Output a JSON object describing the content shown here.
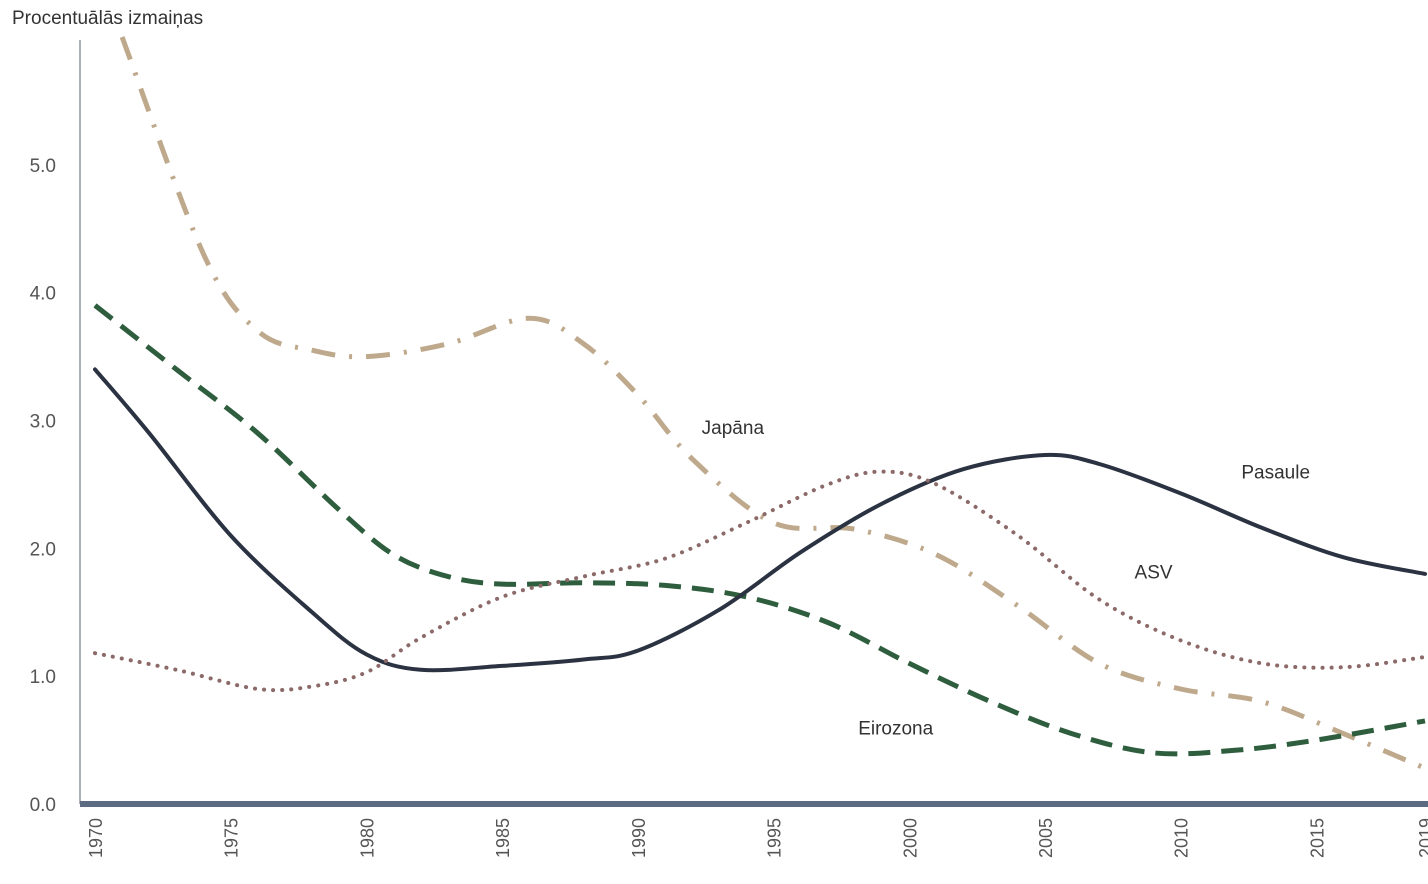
{
  "chart_data": {
    "type": "line",
    "title": "",
    "xlabel": "",
    "ylabel": "Procentuālās izmaiņas",
    "xlim": [
      1970,
      2019
    ],
    "ylim": [
      0,
      6
    ],
    "yticks": [
      "0.0",
      "1.0",
      "2.0",
      "3.0",
      "4.0",
      "5.0"
    ],
    "xticks": [
      "1970",
      "1975",
      "1980",
      "1985",
      "1990",
      "1995",
      "2000",
      "2005",
      "2010",
      "2015",
      "2019"
    ],
    "grid": false,
    "legend": "inline labels",
    "series": [
      {
        "name": "Japāna",
        "color": "#bfa98c",
        "dash": "dash-dot",
        "x": [
          1971,
          1974,
          1976,
          1978,
          1980,
          1983,
          1986,
          1988,
          1990,
          1992,
          1995,
          1998,
          2001,
          2004,
          2007,
          2010,
          2013,
          2016,
          2019
        ],
        "y": [
          6.0,
          4.3,
          3.7,
          3.55,
          3.5,
          3.6,
          3.8,
          3.6,
          3.2,
          2.7,
          2.2,
          2.15,
          1.95,
          1.55,
          1.1,
          0.9,
          0.8,
          0.55,
          0.28
        ]
      },
      {
        "name": "Eirozona",
        "color": "#2e5e3e",
        "dash": "dashed",
        "x": [
          1970,
          1973,
          1976,
          1979,
          1981,
          1983,
          1985,
          1988,
          1991,
          1994,
          1997,
          2000,
          2003,
          2006,
          2009,
          2012,
          2015,
          2019
        ],
        "y": [
          3.9,
          3.4,
          2.9,
          2.3,
          1.95,
          1.78,
          1.72,
          1.73,
          1.71,
          1.62,
          1.42,
          1.1,
          0.8,
          0.55,
          0.4,
          0.42,
          0.5,
          0.65
        ]
      },
      {
        "name": "Pasaule",
        "color": "#2b3342",
        "dash": "solid",
        "x": [
          1970,
          1972,
          1975,
          1978,
          1980,
          1982,
          1985,
          1988,
          1990,
          1993,
          1996,
          1999,
          2002,
          2005,
          2007,
          2010,
          2013,
          2016,
          2019
        ],
        "y": [
          3.4,
          2.9,
          2.1,
          1.5,
          1.17,
          1.05,
          1.08,
          1.13,
          1.2,
          1.52,
          1.97,
          2.35,
          2.62,
          2.73,
          2.66,
          2.43,
          2.16,
          1.93,
          1.8
        ]
      },
      {
        "name": "ASV",
        "color": "#8c6a6a",
        "dash": "dotted",
        "x": [
          1970,
          1973,
          1976,
          1978,
          1980,
          1982,
          1985,
          1988,
          1991,
          1994,
          1997,
          1999,
          2001,
          2004,
          2007,
          2010,
          2013,
          2016,
          2019
        ],
        "y": [
          1.18,
          1.05,
          0.9,
          0.92,
          1.03,
          1.3,
          1.62,
          1.78,
          1.92,
          2.2,
          2.5,
          2.6,
          2.5,
          2.1,
          1.6,
          1.28,
          1.1,
          1.07,
          1.15
        ]
      }
    ],
    "annotations": [
      {
        "text": "Japāna",
        "x": 1993.5,
        "y": 2.95
      },
      {
        "text": "Pasaule",
        "x": 2013.5,
        "y": 2.6
      },
      {
        "text": "ASV",
        "x": 2009,
        "y": 1.82
      },
      {
        "text": "Eirozona",
        "x": 1999.5,
        "y": 0.6
      }
    ]
  }
}
